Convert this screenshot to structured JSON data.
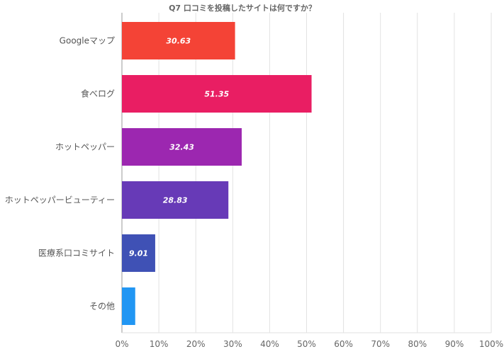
{
  "chart_data": {
    "type": "bar",
    "orientation": "horizontal",
    "title": "Q7 口コミを投稿したサイトは何ですか？",
    "categories": [
      "Googleマップ",
      "食べログ",
      "ホットペッパー",
      "ホットペッパービューティー",
      "医療系口コミサイト",
      "その他"
    ],
    "values": [
      30.63,
      51.35,
      32.43,
      28.83,
      9.01,
      3.6
    ],
    "data_labels": [
      "30.63",
      "51.35",
      "32.43",
      "28.83",
      "9.01",
      ""
    ],
    "colors": [
      "#F44336",
      "#E91E63",
      "#9C27B0",
      "#673AB7",
      "#3F51B5",
      "#2196F3"
    ],
    "xlim": [
      0,
      100
    ],
    "xticks": [
      "0%",
      "10%",
      "20%",
      "30%",
      "40%",
      "50%",
      "60%",
      "70%",
      "80%",
      "90%",
      "100%"
    ],
    "grid": true
  }
}
